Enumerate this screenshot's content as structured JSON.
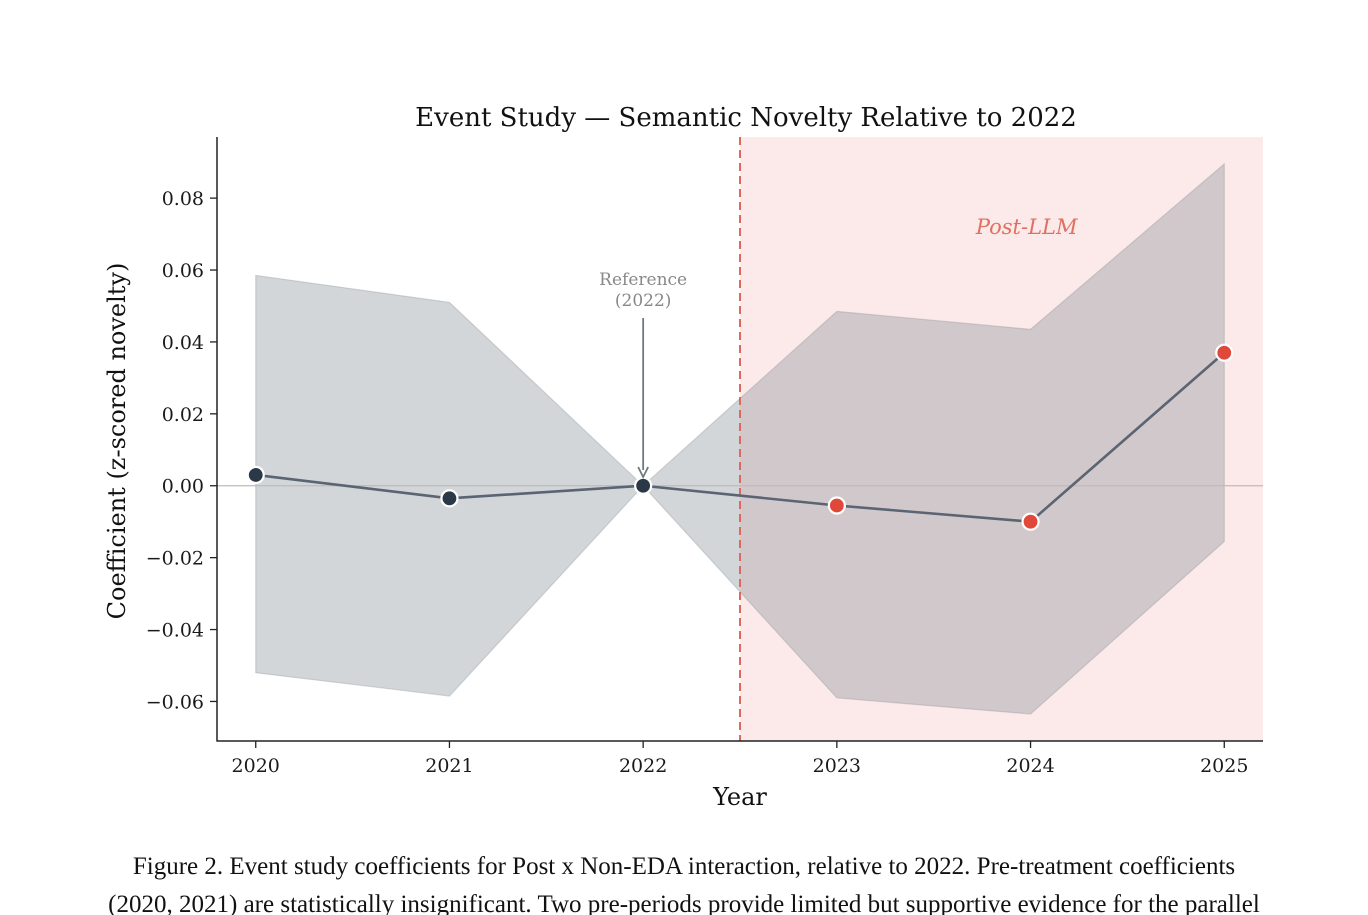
{
  "chart_data": {
    "type": "line",
    "title": "Event Study — Semantic Novelty Relative to 2022",
    "xlabel": "Year",
    "ylabel": "Coefficient (z-scored novelty)",
    "x": [
      2020,
      2021,
      2022,
      2023,
      2024,
      2025
    ],
    "x_tick_labels": [
      "2020",
      "2021",
      "2022",
      "2023",
      "2024",
      "2025"
    ],
    "y_ticks": [
      0.08,
      0.06,
      0.04,
      0.02,
      0.0,
      -0.02,
      -0.04,
      -0.06
    ],
    "y_tick_labels": [
      "0.08",
      "0.06",
      "0.04",
      "0.02",
      "0.00",
      "−0.02",
      "−0.04",
      "−0.06"
    ],
    "xlim": [
      2019.8,
      2025.2
    ],
    "ylim": [
      -0.071,
      0.097
    ],
    "grid": false,
    "series": [
      {
        "values": [
          0.003,
          -0.0035,
          0.0,
          -0.0055,
          -0.01,
          0.037
        ],
        "ci_lower": [
          -0.052,
          -0.0585,
          0.0,
          -0.059,
          -0.0635,
          -0.0155
        ],
        "ci_upper": [
          0.0585,
          0.051,
          0.0,
          0.0485,
          0.0435,
          0.0895
        ]
      }
    ],
    "treatment_start": 2022.5,
    "annotations": {
      "shaded_region_label": "Post-LLM",
      "reference_label_line1": "Reference",
      "reference_label_line2": "(2022)"
    },
    "colors": {
      "line": "#5a6473",
      "pre_marker": "#2b3848",
      "post_marker": "#e0483a",
      "ci_band": "#8b949c",
      "post_region": "#fce9e9",
      "dashed_line": "#e0695e",
      "post_label": "#e07060",
      "reference_text": "#888888",
      "zero_line": "#bbbbbb"
    }
  },
  "caption": "Figure 2. Event study coefficients for Post x Non-EDA interaction, relative to 2022. Pre-treatment coefficients\n(2020, 2021) are statistically insignificant. Two pre-periods provide limited but supportive evidence for the parallel"
}
